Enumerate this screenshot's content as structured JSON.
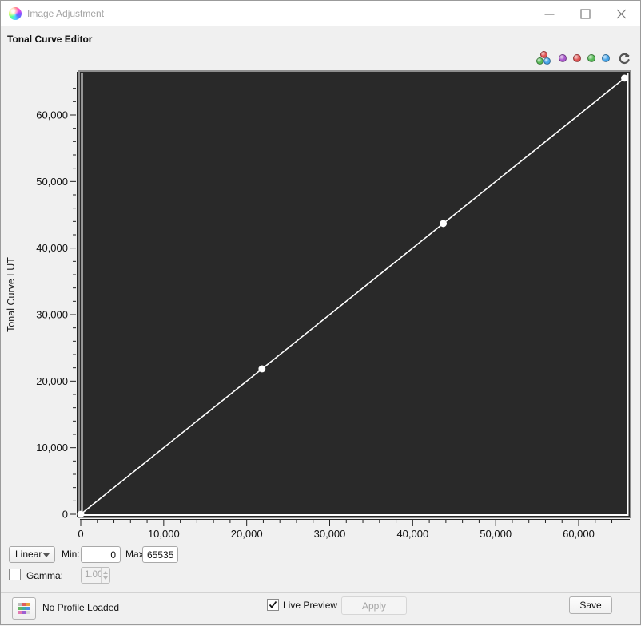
{
  "window": {
    "title": "Image Adjustment",
    "controls": {
      "minimize": "minimize",
      "maximize": "maximize",
      "close": "close"
    }
  },
  "header": {
    "title": "Tonal Curve Editor"
  },
  "toolbar": {
    "channels": [
      {
        "name": "channel-rgb-composite",
        "type": "cluster",
        "colors": [
          "#e05252",
          "#57b957",
          "#46a4e8"
        ]
      },
      {
        "name": "channel-luminance",
        "type": "dot",
        "color": "#a957cc"
      },
      {
        "name": "channel-red",
        "type": "dot",
        "color": "#e05252"
      },
      {
        "name": "channel-green",
        "type": "dot",
        "color": "#57b957"
      },
      {
        "name": "channel-blue",
        "type": "dot",
        "color": "#46a4e8"
      }
    ],
    "reset_icon": "reset-curve-icon"
  },
  "chart_data": {
    "type": "line",
    "title": "",
    "xlabel": "",
    "ylabel": "Tonal Curve LUT",
    "xlim": [
      0,
      65535
    ],
    "ylim": [
      0,
      65535
    ],
    "grid": false,
    "plot_bg": "#292929",
    "line_color": "#ffffff",
    "point_color": "#ffffff",
    "x_ticks": [
      {
        "v": 0,
        "label": "0"
      },
      {
        "v": 10000,
        "label": "10,000"
      },
      {
        "v": 20000,
        "label": "20,000"
      },
      {
        "v": 30000,
        "label": "30,000"
      },
      {
        "v": 40000,
        "label": "40,000"
      },
      {
        "v": 50000,
        "label": "50,000"
      },
      {
        "v": 60000,
        "label": "60,000"
      }
    ],
    "y_ticks": [
      {
        "v": 0,
        "label": "0"
      },
      {
        "v": 10000,
        "label": "10,000"
      },
      {
        "v": 20000,
        "label": "20,000"
      },
      {
        "v": 30000,
        "label": "30,000"
      },
      {
        "v": 40000,
        "label": "40,000"
      },
      {
        "v": 50000,
        "label": "50,000"
      },
      {
        "v": 60000,
        "label": "60,000"
      }
    ],
    "minor_tick_step": 2000,
    "major_tick_step": 10000,
    "points": [
      [
        0,
        0
      ],
      [
        21845,
        21845
      ],
      [
        43690,
        43690
      ],
      [
        65535,
        65535
      ]
    ]
  },
  "controls": {
    "curve_type": "Linear",
    "min_label": "Min:",
    "min_value": "0",
    "max_label": "Max:",
    "max_value": "65535",
    "gamma_label": "Gamma:",
    "gamma_value": "1.00",
    "gamma_checked": false
  },
  "footer": {
    "profile_status": "No Profile Loaded",
    "live_preview_label": "Live Preview",
    "live_preview_checked": true,
    "apply_label": "Apply",
    "apply_enabled": false,
    "save_label": "Save",
    "palette_colors": [
      "#bdbdbd",
      "#e05d5d",
      "#e8a33d",
      "#62b562",
      "#3fae9e",
      "#4b8fe2",
      "#e279b2",
      "#9d5fd3",
      "#d8d8d8"
    ]
  }
}
